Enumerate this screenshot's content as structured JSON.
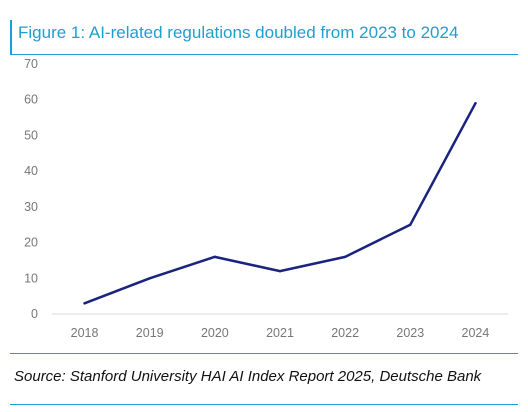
{
  "header": {
    "title": "Figure 1: AI-related regulations doubled from 2023 to 2024"
  },
  "footer": {
    "source": "Source: Stanford University HAI AI Index Report 2025, Deutsche Bank"
  },
  "colors": {
    "accent": "#1f9fcf",
    "line": "#1a237e",
    "axis": "#d9d9d9",
    "tick_text": "#777777"
  },
  "chart_data": {
    "type": "line",
    "title": "Figure 1: AI-related regulations doubled from 2023 to 2024",
    "xlabel": "",
    "ylabel": "",
    "categories": [
      "2018",
      "2019",
      "2020",
      "2021",
      "2022",
      "2023",
      "2024"
    ],
    "series": [
      {
        "values": [
          3,
          10,
          16,
          12,
          16,
          25,
          59
        ]
      }
    ],
    "ylim": [
      0,
      70
    ],
    "yticks": [
      "0",
      "10",
      "20",
      "30",
      "40",
      "50",
      "60",
      "70"
    ],
    "grid": false,
    "legend": "none"
  }
}
